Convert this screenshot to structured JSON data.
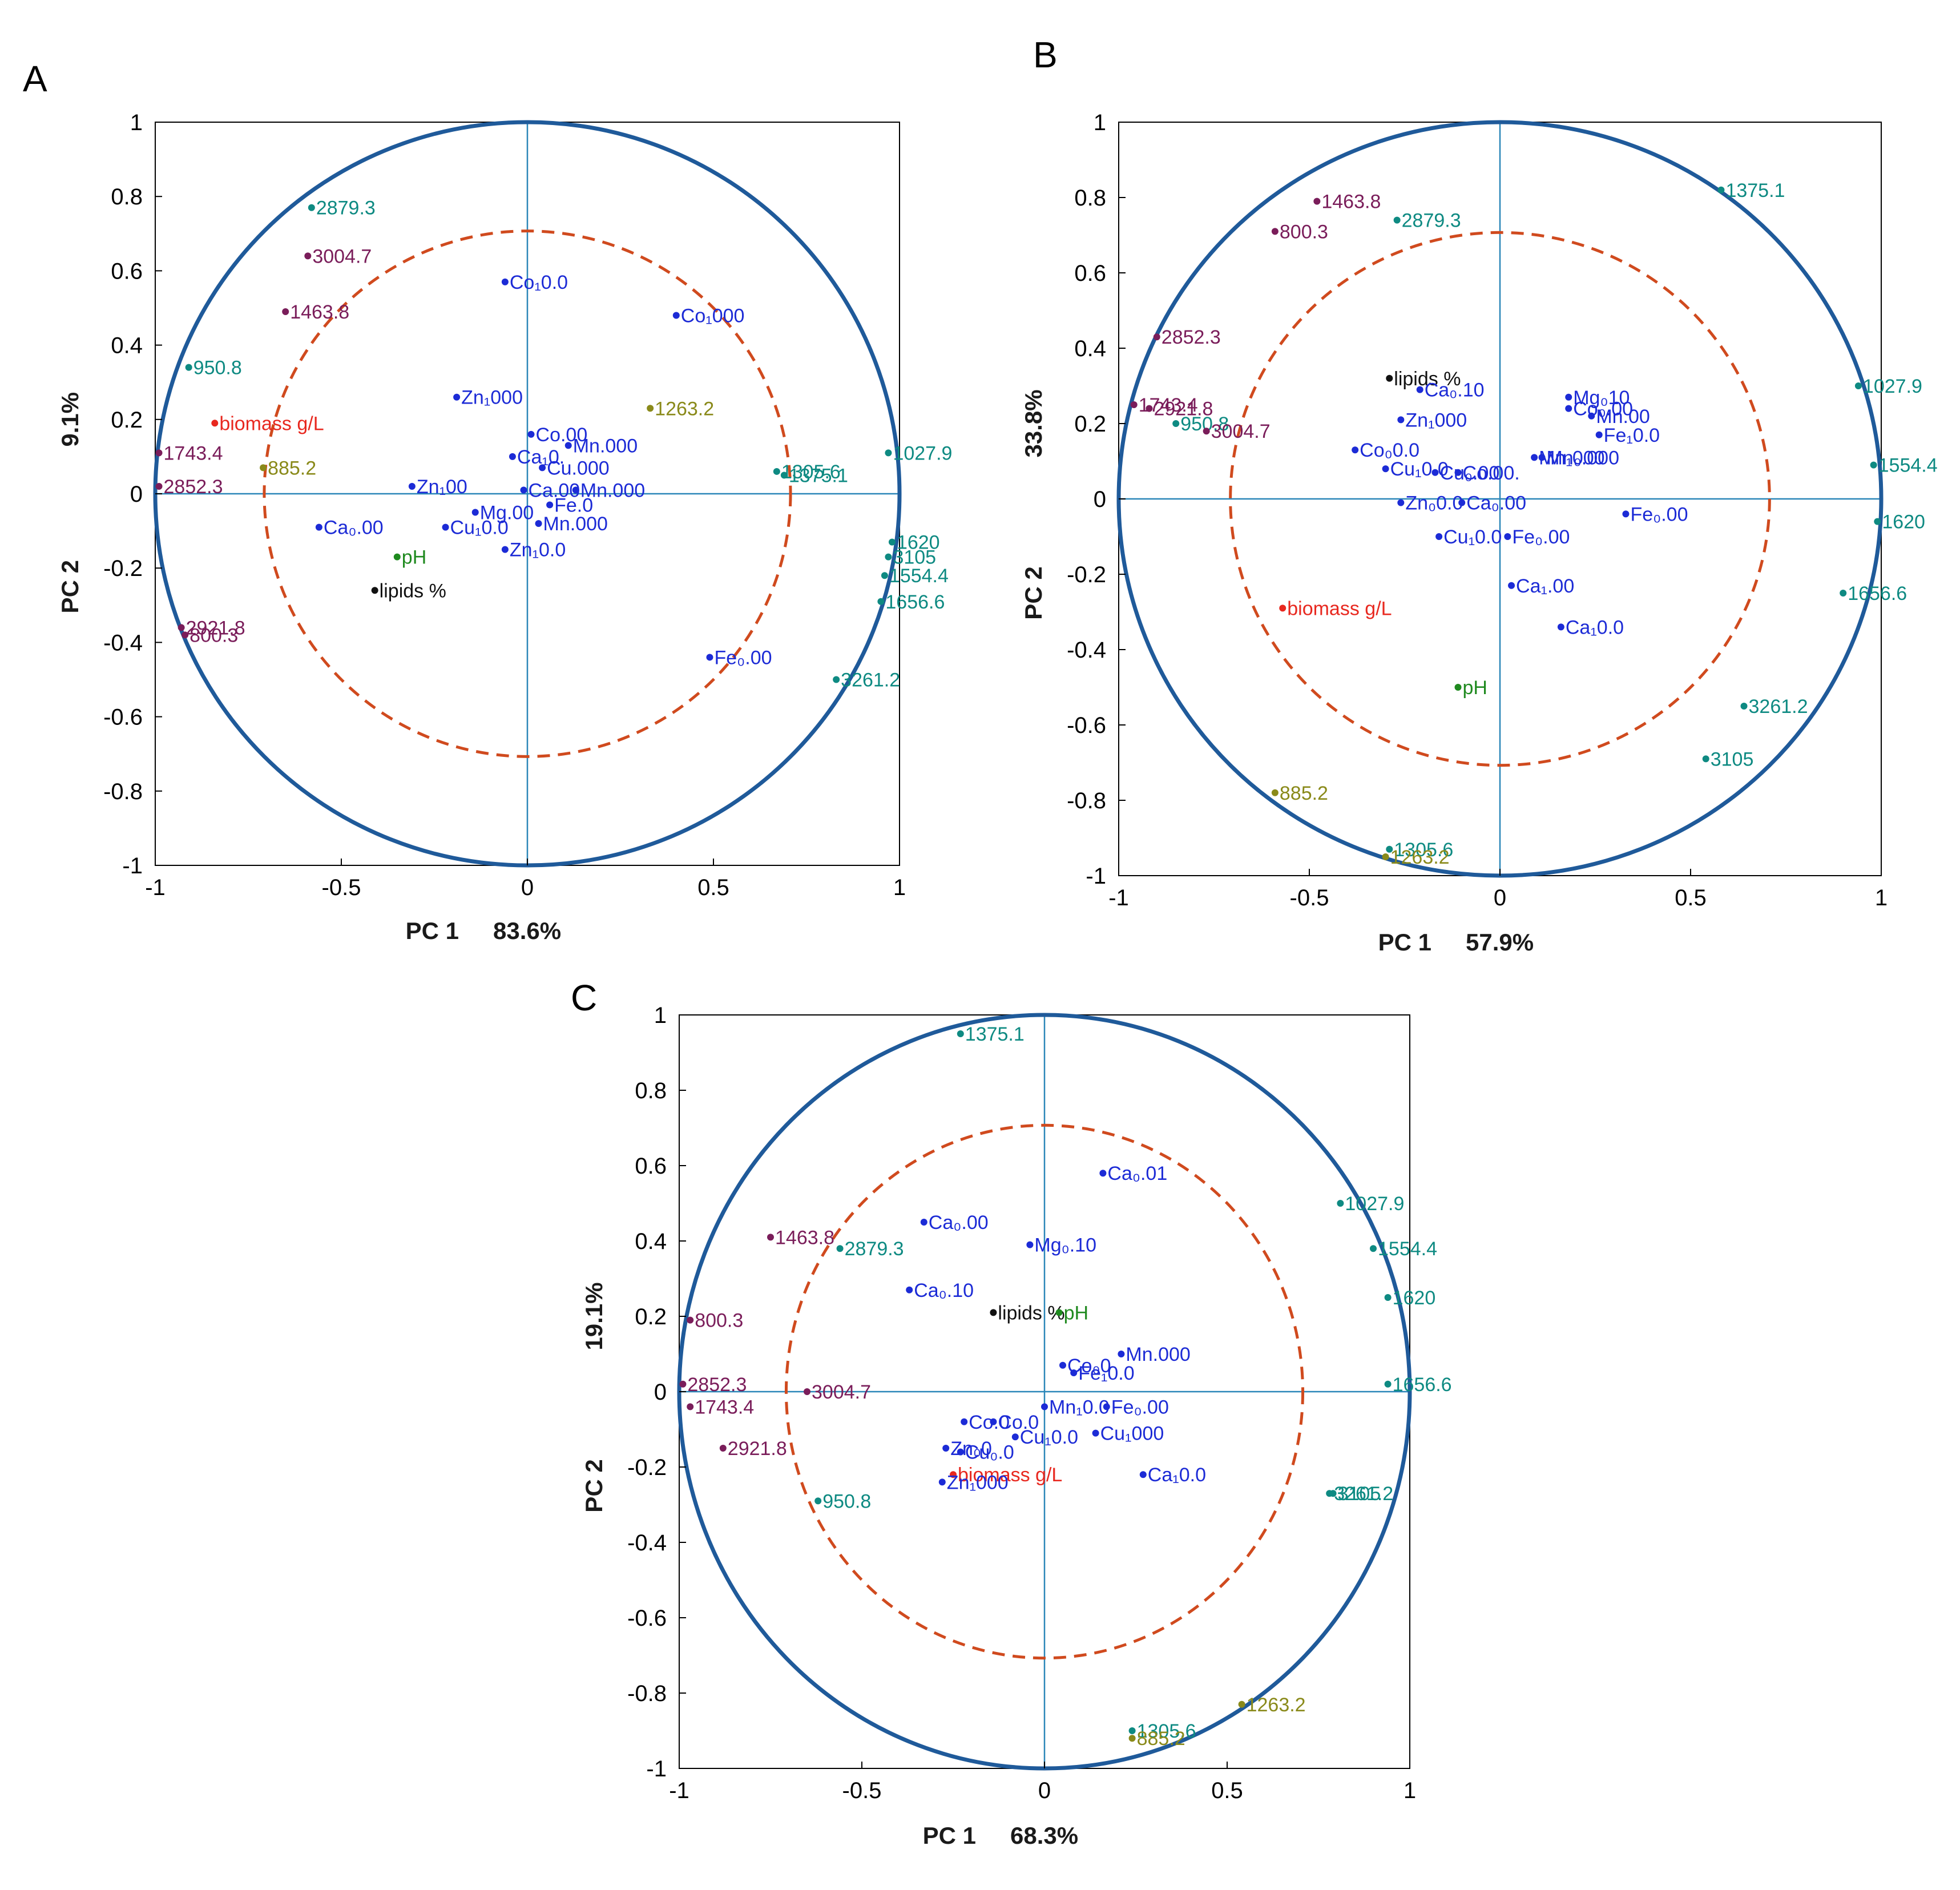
{
  "colors": {
    "circle": "#1f5a9a",
    "inner_circle": "#d04a1e",
    "axes_lines": "#2a86b8",
    "wavenumber": "#0e8a82",
    "wavenumber_dark": "#7a1d5a",
    "metal": "#1c2bd6",
    "biomass": "#e8281f",
    "ph": "#1f8a1f",
    "lipids": "#111111",
    "olive": "#8a8a1a"
  },
  "chart_data": [
    {
      "type": "scatter",
      "panel": "A",
      "xlabel": "PC 1",
      "xpct": "83.6%",
      "ylabel": "PC 2",
      "ypct": "9.1%",
      "xlim": [
        -1,
        1
      ],
      "ylim": [
        -1,
        1
      ],
      "xticks": [
        "-1",
        "-0.5",
        "0",
        "0.5",
        "1"
      ],
      "yticks": [
        "1",
        "0.8",
        "0.6",
        "0.4",
        "0.2",
        "0",
        "-0.2",
        "-0.4",
        "-0.6",
        "-0.8",
        "-1"
      ],
      "points": [
        {
          "label": "2879.3",
          "x": -0.58,
          "y": 0.77,
          "color": "wavenumber"
        },
        {
          "label": "3004.7",
          "x": -0.59,
          "y": 0.64,
          "color": "wavenumber_dark"
        },
        {
          "label": "1463.8",
          "x": -0.65,
          "y": 0.49,
          "color": "wavenumber_dark"
        },
        {
          "label": "950.8",
          "x": -0.91,
          "y": 0.34,
          "color": "wavenumber"
        },
        {
          "label": "biomass g/L",
          "x": -0.84,
          "y": 0.19,
          "color": "biomass"
        },
        {
          "label": "1743.4",
          "x": -0.99,
          "y": 0.11,
          "color": "wavenumber_dark"
        },
        {
          "label": "885.2",
          "x": -0.71,
          "y": 0.07,
          "color": "olive"
        },
        {
          "label": "2852.3",
          "x": -0.99,
          "y": 0.02,
          "color": "wavenumber_dark"
        },
        {
          "label": "pH",
          "x": -0.35,
          "y": -0.17,
          "color": "ph"
        },
        {
          "label": "lipids %",
          "x": -0.41,
          "y": -0.26,
          "color": "lipids"
        },
        {
          "label": "2921.8",
          "x": -0.93,
          "y": -0.36,
          "color": "wavenumber_dark"
        },
        {
          "label": "800.3",
          "x": -0.92,
          "y": -0.38,
          "color": "wavenumber_dark"
        },
        {
          "label": "Co₁0.0",
          "x": -0.06,
          "y": 0.57,
          "color": "metal"
        },
        {
          "label": "Co₁000",
          "x": 0.4,
          "y": 0.48,
          "color": "metal"
        },
        {
          "label": "Zn₁000",
          "x": -0.19,
          "y": 0.26,
          "color": "metal"
        },
        {
          "label": "1263.2",
          "x": 0.33,
          "y": 0.23,
          "color": "olive"
        },
        {
          "label": "Co.00",
          "x": 0.01,
          "y": 0.16,
          "color": "metal"
        },
        {
          "label": "Ca₁0.",
          "x": -0.04,
          "y": 0.1,
          "color": "metal"
        },
        {
          "label": "Mn.000",
          "x": 0.11,
          "y": 0.13,
          "color": "metal"
        },
        {
          "label": "Cu.000",
          "x": 0.04,
          "y": 0.07,
          "color": "metal"
        },
        {
          "label": "1305.6",
          "x": 0.67,
          "y": 0.06,
          "color": "wavenumber"
        },
        {
          "label": "1375.1",
          "x": 0.69,
          "y": 0.05,
          "color": "wavenumber"
        },
        {
          "label": "1027.9",
          "x": 0.97,
          "y": 0.11,
          "color": "wavenumber"
        },
        {
          "label": "Zn₁00",
          "x": -0.31,
          "y": 0.02,
          "color": "metal"
        },
        {
          "label": "Ca.00",
          "x": -0.01,
          "y": 0.01,
          "color": "metal"
        },
        {
          "label": "Mn.000",
          "x": 0.13,
          "y": 0.01,
          "color": "metal"
        },
        {
          "label": "Ca₀.00",
          "x": -0.56,
          "y": -0.09,
          "color": "metal"
        },
        {
          "label": "Cu₁0.0",
          "x": -0.22,
          "y": -0.09,
          "color": "metal"
        },
        {
          "label": "Mg.00",
          "x": -0.14,
          "y": -0.05,
          "color": "metal"
        },
        {
          "label": "Fe.0",
          "x": 0.06,
          "y": -0.03,
          "color": "metal"
        },
        {
          "label": "Mn.000",
          "x": 0.03,
          "y": -0.08,
          "color": "metal"
        },
        {
          "label": "Zn₁0.0",
          "x": -0.06,
          "y": -0.15,
          "color": "metal"
        },
        {
          "label": "Fe₀.00",
          "x": 0.49,
          "y": -0.44,
          "color": "metal"
        },
        {
          "label": "1620",
          "x": 0.98,
          "y": -0.13,
          "color": "wavenumber"
        },
        {
          "label": "3105",
          "x": 0.97,
          "y": -0.17,
          "color": "wavenumber"
        },
        {
          "label": "1554.4",
          "x": 0.96,
          "y": -0.22,
          "color": "wavenumber"
        },
        {
          "label": "1656.6",
          "x": 0.95,
          "y": -0.29,
          "color": "wavenumber"
        },
        {
          "label": "3261.2",
          "x": 0.83,
          "y": -0.5,
          "color": "wavenumber"
        }
      ]
    },
    {
      "type": "scatter",
      "panel": "B",
      "xlabel": "PC 1",
      "xpct": "57.9%",
      "ylabel": "PC 2",
      "ypct": "33.8%",
      "xlim": [
        -1,
        1
      ],
      "ylim": [
        -1,
        1
      ],
      "xticks": [
        "-1",
        "-0.5",
        "0",
        "0.5",
        "1"
      ],
      "yticks": [
        "1",
        "0.8",
        "0.6",
        "0.4",
        "0.2",
        "0",
        "-0.2",
        "-0.4",
        "-0.6",
        "-0.8",
        "-1"
      ],
      "points": [
        {
          "label": "1463.8",
          "x": -0.48,
          "y": 0.79,
          "color": "wavenumber_dark"
        },
        {
          "label": "2879.3",
          "x": -0.27,
          "y": 0.74,
          "color": "wavenumber"
        },
        {
          "label": "800.3",
          "x": -0.59,
          "y": 0.71,
          "color": "wavenumber_dark"
        },
        {
          "label": "1375.1",
          "x": 0.58,
          "y": 0.82,
          "color": "wavenumber"
        },
        {
          "label": "2852.3",
          "x": -0.9,
          "y": 0.43,
          "color": "wavenumber_dark"
        },
        {
          "label": "lipids %",
          "x": -0.29,
          "y": 0.32,
          "color": "lipids"
        },
        {
          "label": "Ca₀.10",
          "x": -0.21,
          "y": 0.29,
          "color": "metal"
        },
        {
          "label": "Zn₁000",
          "x": -0.26,
          "y": 0.21,
          "color": "metal"
        },
        {
          "label": "1743.4",
          "x": -0.96,
          "y": 0.25,
          "color": "wavenumber_dark"
        },
        {
          "label": "2921.8",
          "x": -0.92,
          "y": 0.24,
          "color": "wavenumber_dark"
        },
        {
          "label": "950.8",
          "x": -0.85,
          "y": 0.2,
          "color": "wavenumber"
        },
        {
          "label": "3004.7",
          "x": -0.77,
          "y": 0.18,
          "color": "wavenumber_dark"
        },
        {
          "label": "1027.9",
          "x": 0.94,
          "y": 0.3,
          "color": "wavenumber"
        },
        {
          "label": "1554.4",
          "x": 0.98,
          "y": 0.09,
          "color": "wavenumber"
        },
        {
          "label": "1620",
          "x": 0.99,
          "y": -0.06,
          "color": "wavenumber"
        },
        {
          "label": "1656.6",
          "x": 0.9,
          "y": -0.25,
          "color": "wavenumber"
        },
        {
          "label": "3261.2",
          "x": 0.64,
          "y": -0.55,
          "color": "wavenumber"
        },
        {
          "label": "3105",
          "x": 0.54,
          "y": -0.69,
          "color": "wavenumber"
        },
        {
          "label": "Mg₀10",
          "x": 0.18,
          "y": 0.27,
          "color": "metal"
        },
        {
          "label": "Co₀.00",
          "x": 0.18,
          "y": 0.24,
          "color": "metal"
        },
        {
          "label": "Mn.00",
          "x": 0.24,
          "y": 0.22,
          "color": "metal"
        },
        {
          "label": "Fe₁0.0",
          "x": 0.26,
          "y": 0.17,
          "color": "metal"
        },
        {
          "label": "Co₀0.0",
          "x": -0.38,
          "y": 0.13,
          "color": "metal"
        },
        {
          "label": "Cu₁0.0",
          "x": -0.3,
          "y": 0.08,
          "color": "metal"
        },
        {
          "label": "Cu₀.00",
          "x": -0.17,
          "y": 0.07,
          "color": "metal"
        },
        {
          "label": "Co.00.",
          "x": -0.11,
          "y": 0.07,
          "color": "metal"
        },
        {
          "label": "Mn₁000",
          "x": 0.09,
          "y": 0.11,
          "color": "metal"
        },
        {
          "label": "Mn₀.000",
          "x": 0.11,
          "y": 0.11,
          "color": "metal"
        },
        {
          "label": "Zn₀0.0",
          "x": -0.26,
          "y": -0.01,
          "color": "metal"
        },
        {
          "label": "Ca₀.00",
          "x": -0.1,
          "y": -0.01,
          "color": "metal"
        },
        {
          "label": "Cu₁0.0",
          "x": -0.16,
          "y": -0.1,
          "color": "metal"
        },
        {
          "label": "Fe₀.00",
          "x": 0.33,
          "y": -0.04,
          "color": "metal"
        },
        {
          "label": "Fe₀.00",
          "x": 0.02,
          "y": -0.1,
          "color": "metal"
        },
        {
          "label": "Ca₁.00",
          "x": 0.03,
          "y": -0.23,
          "color": "metal"
        },
        {
          "label": "Ca₁0.0",
          "x": 0.16,
          "y": -0.34,
          "color": "metal"
        },
        {
          "label": "biomass g/L",
          "x": -0.57,
          "y": -0.29,
          "color": "biomass"
        },
        {
          "label": "pH",
          "x": -0.11,
          "y": -0.5,
          "color": "ph"
        },
        {
          "label": "885.2",
          "x": -0.59,
          "y": -0.78,
          "color": "olive"
        },
        {
          "label": "1305.6",
          "x": -0.29,
          "y": -0.93,
          "color": "wavenumber"
        },
        {
          "label": "1263.2",
          "x": -0.3,
          "y": -0.95,
          "color": "olive"
        }
      ]
    },
    {
      "type": "scatter",
      "panel": "C",
      "xlabel": "PC 1",
      "xpct": "68.3%",
      "ylabel": "PC 2",
      "ypct": "19.1%",
      "xlim": [
        -1,
        1
      ],
      "ylim": [
        -1,
        1
      ],
      "xticks": [
        "-1",
        "-0.5",
        "0",
        "0.5",
        "1"
      ],
      "yticks": [
        "1",
        "0.8",
        "0.6",
        "0.4",
        "0.2",
        "0",
        "-0.2",
        "-0.4",
        "-0.6",
        "-0.8",
        "-1"
      ],
      "points": [
        {
          "label": "1375.1",
          "x": -0.23,
          "y": 0.95,
          "color": "wavenumber"
        },
        {
          "label": "Ca₀.01",
          "x": 0.16,
          "y": 0.58,
          "color": "metal"
        },
        {
          "label": "1027.9",
          "x": 0.81,
          "y": 0.5,
          "color": "wavenumber"
        },
        {
          "label": "Ca₀.00",
          "x": -0.33,
          "y": 0.45,
          "color": "metal"
        },
        {
          "label": "1463.8",
          "x": -0.75,
          "y": 0.41,
          "color": "wavenumber_dark"
        },
        {
          "label": "2879.3",
          "x": -0.56,
          "y": 0.38,
          "color": "wavenumber"
        },
        {
          "label": "Mg₀.10",
          "x": -0.04,
          "y": 0.39,
          "color": "metal"
        },
        {
          "label": "1554.4",
          "x": 0.9,
          "y": 0.38,
          "color": "wavenumber"
        },
        {
          "label": "Ca₀.10",
          "x": -0.37,
          "y": 0.27,
          "color": "metal"
        },
        {
          "label": "1620",
          "x": 0.94,
          "y": 0.25,
          "color": "wavenumber"
        },
        {
          "label": "lipids %",
          "x": -0.14,
          "y": 0.21,
          "color": "lipids"
        },
        {
          "label": "pH",
          "x": 0.04,
          "y": 0.21,
          "color": "ph"
        },
        {
          "label": "800.3",
          "x": -0.97,
          "y": 0.19,
          "color": "wavenumber_dark"
        },
        {
          "label": "Mn.000",
          "x": 0.21,
          "y": 0.1,
          "color": "metal"
        },
        {
          "label": "Co₀0",
          "x": 0.05,
          "y": 0.07,
          "color": "metal"
        },
        {
          "label": "Fe₁0.0",
          "x": 0.08,
          "y": 0.05,
          "color": "metal"
        },
        {
          "label": "2852.3",
          "x": -0.99,
          "y": 0.02,
          "color": "wavenumber_dark"
        },
        {
          "label": "3004.7",
          "x": -0.65,
          "y": 0.0,
          "color": "wavenumber_dark"
        },
        {
          "label": "1656.6",
          "x": 0.94,
          "y": 0.02,
          "color": "wavenumber"
        },
        {
          "label": "1743.4",
          "x": -0.97,
          "y": -0.04,
          "color": "wavenumber_dark"
        },
        {
          "label": "Mn₁0.0",
          "x": 0.0,
          "y": -0.04,
          "color": "metal"
        },
        {
          "label": "Fe₀.00",
          "x": 0.17,
          "y": -0.04,
          "color": "metal"
        },
        {
          "label": "Co.0",
          "x": -0.22,
          "y": -0.08,
          "color": "metal"
        },
        {
          "label": "Co.0",
          "x": -0.14,
          "y": -0.08,
          "color": "metal"
        },
        {
          "label": "Cu₁0.0",
          "x": -0.08,
          "y": -0.12,
          "color": "metal"
        },
        {
          "label": "Cu₁000",
          "x": 0.14,
          "y": -0.11,
          "color": "metal"
        },
        {
          "label": "Zn₀0",
          "x": -0.27,
          "y": -0.15,
          "color": "metal"
        },
        {
          "label": "Cu₀.0",
          "x": -0.23,
          "y": -0.16,
          "color": "metal"
        },
        {
          "label": "2921.8",
          "x": -0.88,
          "y": -0.15,
          "color": "wavenumber_dark"
        },
        {
          "label": "biomass g/L",
          "x": -0.25,
          "y": -0.22,
          "color": "biomass"
        },
        {
          "label": "Zn₁000",
          "x": -0.28,
          "y": -0.24,
          "color": "metal"
        },
        {
          "label": "Ca₁0.0",
          "x": 0.27,
          "y": -0.22,
          "color": "metal"
        },
        {
          "label": "950.8",
          "x": -0.62,
          "y": -0.29,
          "color": "wavenumber"
        },
        {
          "label": "3261.2",
          "x": 0.78,
          "y": -0.27,
          "color": "wavenumber"
        },
        {
          "label": "3105",
          "x": 0.79,
          "y": -0.27,
          "color": "wavenumber"
        },
        {
          "label": "1263.2",
          "x": 0.54,
          "y": -0.83,
          "color": "olive"
        },
        {
          "label": "1305.6",
          "x": 0.24,
          "y": -0.9,
          "color": "wavenumber"
        },
        {
          "label": "885.2",
          "x": 0.24,
          "y": -0.92,
          "color": "olive"
        }
      ]
    }
  ]
}
